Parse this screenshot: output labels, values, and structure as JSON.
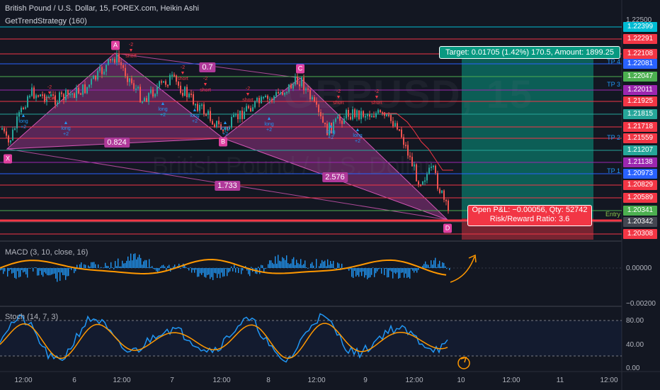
{
  "header": {
    "title": "British Pound / U.S. Dollar, 15, FOREX.com, Heikin Ashi",
    "strategy": "GetTrendStrategy (160)"
  },
  "watermark": {
    "symbol": "GBPUSD, 15",
    "name": "British Pound / U.S. Dollar"
  },
  "price_axis": {
    "top_label": "1.22500",
    "levels": [
      {
        "value": "1.22399",
        "color": "#00bcd4",
        "text_color": "#ffffff"
      },
      {
        "value": "1.22291",
        "color": "#f23645",
        "text_color": "#ffffff"
      },
      {
        "value": "1.22108",
        "color": "#f23645",
        "text_color": "#ffffff"
      },
      {
        "value": "1.22081",
        "color": "#2962ff",
        "text_color": "#ffffff"
      },
      {
        "value": "1.22047",
        "color": "#4caf50",
        "text_color": "#ffffff"
      },
      {
        "value": "1.22011",
        "color": "#9c27b0",
        "text_color": "#ffffff"
      },
      {
        "value": "1.21925",
        "color": "#f23645",
        "text_color": "#ffffff"
      },
      {
        "value": "1.21815",
        "color": "#26a69a",
        "text_color": "#ffffff"
      },
      {
        "value": "1.21718",
        "color": "#f23645",
        "text_color": "#ffffff"
      },
      {
        "value": "1.21559",
        "color": "#f23645",
        "text_color": "#ffffff"
      },
      {
        "value": "1.21207",
        "color": "#26a69a",
        "text_color": "#ffffff"
      },
      {
        "value": "1.21138",
        "color": "#9c27b0",
        "text_color": "#ffffff"
      },
      {
        "value": "1.20973",
        "color": "#2962ff",
        "text_color": "#ffffff"
      },
      {
        "value": "1.20829",
        "color": "#f23645",
        "text_color": "#ffffff"
      },
      {
        "value": "1.20589",
        "color": "#f23645",
        "text_color": "#ffffff"
      },
      {
        "value": "1.20341",
        "color": "#4caf50",
        "text_color": "#ffffff"
      },
      {
        "value": "1.20342",
        "color": "#434651",
        "text_color": "#ffffff"
      },
      {
        "value": "1.20308",
        "color": "#f23645",
        "text_color": "#ffffff"
      }
    ]
  },
  "pattern": {
    "points": [
      "X",
      "A",
      "B",
      "C",
      "D"
    ],
    "ratios": [
      "0.7",
      "0.824",
      "1.733",
      "2.576"
    ]
  },
  "take_profit": [
    "TP 4",
    "TP 3",
    "TP 2",
    "TP 1"
  ],
  "entry_label": "Entry",
  "signals": {
    "short": "short",
    "short_val": "-2",
    "long": "long",
    "long_val": "+2"
  },
  "target_box": "Target: 0.01705 (1.42%) 170.5, Amount: 1899.25",
  "pnl_box": {
    "line1": "Open P&L: −0.00056, Qty: 52742",
    "line2": "Risk/Reward Ratio: 3.6"
  },
  "macd": {
    "label": "MACD (3, 10, close, 16)",
    "axis": [
      "0.00000",
      "−0.00200"
    ]
  },
  "stoch": {
    "label": "Stoch (14, 7, 3)",
    "axis": [
      "80.00",
      "40.00",
      "0.00"
    ]
  },
  "time_axis": [
    "12:00",
    "6",
    "12:00",
    "7",
    "12:00",
    "8",
    "12:00",
    "9",
    "12:00",
    "10",
    "12:00",
    "11",
    "12:00"
  ],
  "colors": {
    "background": "#131722",
    "pattern_fill": "#b0399a",
    "up_candle": "#26a69a",
    "down_candle": "#ef5350",
    "target_green": "#089981",
    "stop_red": "#f23645",
    "macd_line": "#ff9800",
    "macd_hist": "#2196f3",
    "stoch_k": "#2196f3",
    "stoch_d": "#ff9800"
  }
}
